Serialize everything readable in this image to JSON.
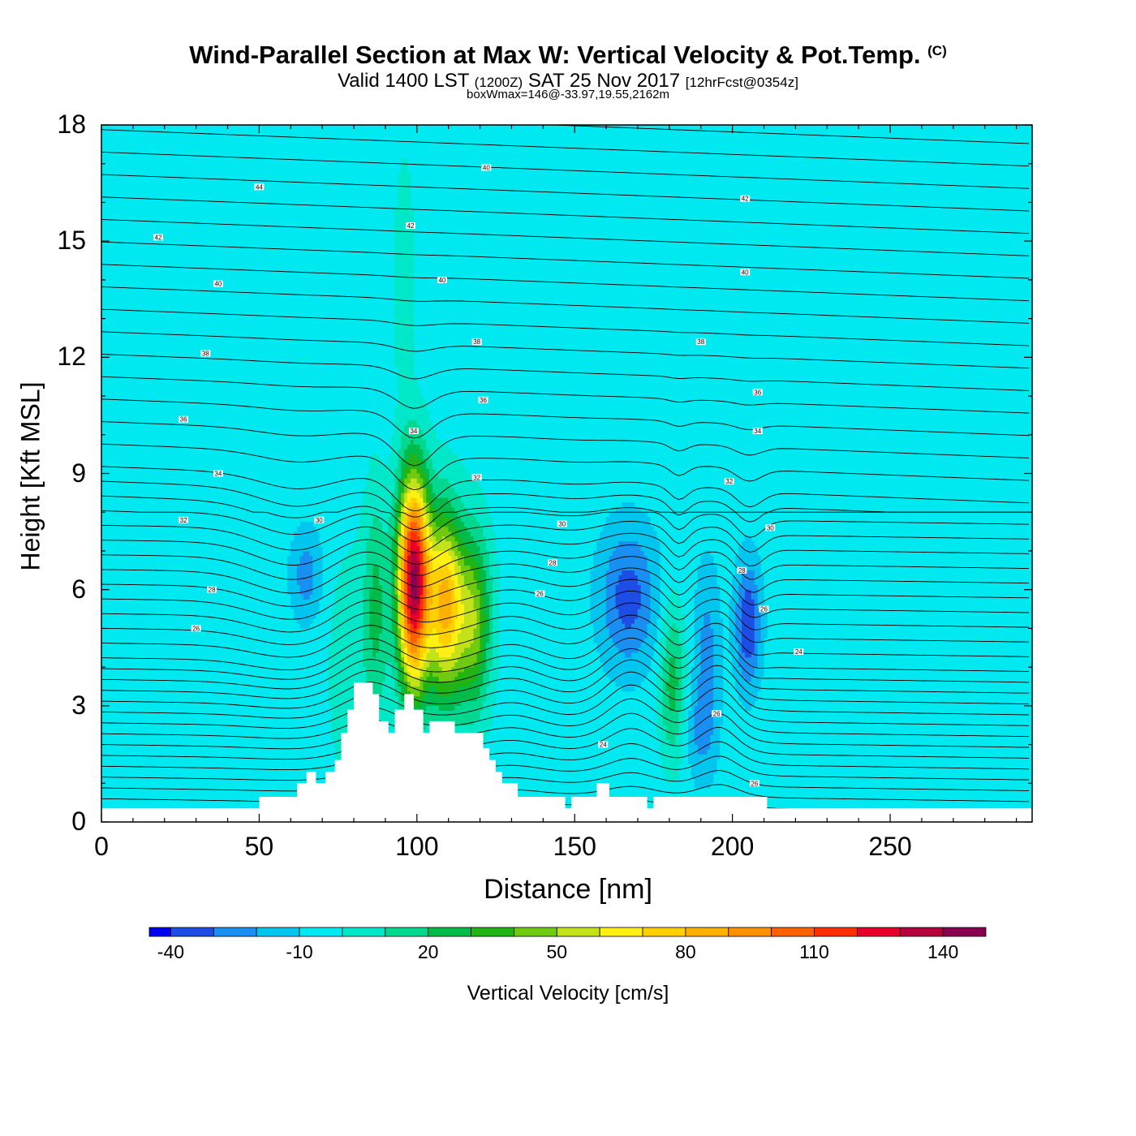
{
  "header": {
    "title": "Wind-Parallel Section at Max W: Vertical Velocity & Pot.Temp.",
    "copyright": "(C)",
    "valid_prefix": "Valid 1400 LST",
    "valid_utc": "(1200Z)",
    "valid_date": "SAT 25 Nov 2017",
    "forecast": "[12hrFcst@0354z]",
    "box_wmax": "boxWmax=146@-33.97,19.55,2162m"
  },
  "chart_data": {
    "type": "heatmap",
    "title": "Wind-Parallel Section at Max W: Vertical Velocity & Pot.Temp.",
    "xlabel": "Distance [nm]",
    "ylabel": "Height [Kft MSL]",
    "xlim": [
      0,
      295
    ],
    "ylim": [
      0,
      18
    ],
    "x_ticks": [
      "0",
      "50",
      "100",
      "150",
      "200",
      "250"
    ],
    "y_ticks": [
      "0",
      "3",
      "6",
      "9",
      "12",
      "15",
      "18"
    ],
    "background_value_cms": -5,
    "vertical_velocity_cells": [
      {
        "x": 99,
        "y": 6.2,
        "wx": 5,
        "wy": 2.7,
        "w": 146
      },
      {
        "x": 109,
        "y": 5.6,
        "wx": 5.5,
        "wy": 2.4,
        "w": 85
      },
      {
        "x": 118,
        "y": 5.2,
        "wx": 5.5,
        "wy": 2.3,
        "w": 52
      },
      {
        "x": 87,
        "y": 5.5,
        "wx": 4,
        "wy": 3,
        "w": 27
      },
      {
        "x": 181,
        "y": 3.6,
        "wx": 4,
        "wy": 2,
        "w": 30
      },
      {
        "x": 78,
        "y": 4,
        "wx": 7,
        "wy": 3.5,
        "w": 10
      },
      {
        "x": 96,
        "y": 14,
        "wx": 3,
        "wy": 3,
        "w": 15
      },
      {
        "x": 167,
        "y": 5.8,
        "wx": 9,
        "wy": 1.8,
        "w": -30
      },
      {
        "x": 205,
        "y": 5.1,
        "wx": 4,
        "wy": 1.6,
        "w": -35
      },
      {
        "x": 65,
        "y": 6.4,
        "wx": 5,
        "wy": 1.2,
        "w": -20
      },
      {
        "x": 192,
        "y": 4.5,
        "wx": 4,
        "wy": 2.2,
        "w": -18
      },
      {
        "x": 190,
        "y": 2.3,
        "wx": 5,
        "wy": 1.3,
        "w": -15
      }
    ],
    "terrain_profile": [
      [
        0,
        0.35
      ],
      [
        50,
        0.35
      ],
      [
        50,
        0.65
      ],
      [
        62,
        0.65
      ],
      [
        62,
        1.0
      ],
      [
        65,
        1.0
      ],
      [
        65,
        1.3
      ],
      [
        68,
        1.3
      ],
      [
        68,
        1.0
      ],
      [
        71,
        1.0
      ],
      [
        71,
        1.3
      ],
      [
        74,
        1.3
      ],
      [
        74,
        1.6
      ],
      [
        76,
        1.6
      ],
      [
        76,
        2.3
      ],
      [
        78,
        2.3
      ],
      [
        78,
        2.9
      ],
      [
        80,
        2.9
      ],
      [
        80,
        3.6
      ],
      [
        86,
        3.6
      ],
      [
        86,
        3.3
      ],
      [
        88,
        3.3
      ],
      [
        88,
        2.6
      ],
      [
        91,
        2.6
      ],
      [
        91,
        2.3
      ],
      [
        93,
        2.3
      ],
      [
        93,
        2.9
      ],
      [
        96,
        2.9
      ],
      [
        96,
        3.3
      ],
      [
        99,
        3.3
      ],
      [
        99,
        2.9
      ],
      [
        102,
        2.9
      ],
      [
        102,
        2.3
      ],
      [
        104,
        2.3
      ],
      [
        104,
        2.6
      ],
      [
        112,
        2.6
      ],
      [
        112,
        2.3
      ],
      [
        121,
        2.3
      ],
      [
        121,
        1.9
      ],
      [
        123,
        1.9
      ],
      [
        123,
        1.6
      ],
      [
        125,
        1.6
      ],
      [
        125,
        1.3
      ],
      [
        127,
        1.3
      ],
      [
        127,
        1.0
      ],
      [
        132,
        1.0
      ],
      [
        132,
        0.65
      ],
      [
        147,
        0.65
      ],
      [
        147,
        0.35
      ],
      [
        149,
        0.35
      ],
      [
        149,
        0.65
      ],
      [
        157,
        0.65
      ],
      [
        157,
        1.0
      ],
      [
        161,
        1.0
      ],
      [
        161,
        0.65
      ],
      [
        173,
        0.65
      ],
      [
        173,
        0.35
      ],
      [
        175,
        0.35
      ],
      [
        175,
        0.65
      ],
      [
        211,
        0.65
      ],
      [
        211,
        0.35
      ],
      [
        295,
        0.35
      ]
    ],
    "theta_contours": {
      "levels_celsius_label": [
        "24",
        "26",
        "28",
        "30",
        "32",
        "34",
        "36",
        "38",
        "40",
        "42",
        "44"
      ],
      "labels": [
        {
          "x": 18,
          "y": 15.1,
          "text": "42"
        },
        {
          "x": 50,
          "y": 16.4,
          "text": "44"
        },
        {
          "x": 122,
          "y": 16.9,
          "text": "40"
        },
        {
          "x": 98,
          "y": 15.4,
          "text": "42"
        },
        {
          "x": 204,
          "y": 16.1,
          "text": "42"
        },
        {
          "x": 37,
          "y": 13.9,
          "text": "40"
        },
        {
          "x": 108,
          "y": 14.0,
          "text": "40"
        },
        {
          "x": 204,
          "y": 14.2,
          "text": "40"
        },
        {
          "x": 33,
          "y": 12.1,
          "text": "38"
        },
        {
          "x": 119,
          "y": 12.4,
          "text": "38"
        },
        {
          "x": 190,
          "y": 12.4,
          "text": "38"
        },
        {
          "x": 26,
          "y": 10.4,
          "text": "36"
        },
        {
          "x": 121,
          "y": 10.9,
          "text": "36"
        },
        {
          "x": 208,
          "y": 11.1,
          "text": "36"
        },
        {
          "x": 99,
          "y": 10.1,
          "text": "34"
        },
        {
          "x": 208,
          "y": 10.1,
          "text": "34"
        },
        {
          "x": 37,
          "y": 9.0,
          "text": "34"
        },
        {
          "x": 119,
          "y": 8.9,
          "text": "32"
        },
        {
          "x": 199,
          "y": 8.8,
          "text": "32"
        },
        {
          "x": 26,
          "y": 7.8,
          "text": "32"
        },
        {
          "x": 69,
          "y": 7.8,
          "text": "30"
        },
        {
          "x": 146,
          "y": 7.7,
          "text": "30"
        },
        {
          "x": 212,
          "y": 7.6,
          "text": "30"
        },
        {
          "x": 143,
          "y": 6.7,
          "text": "28"
        },
        {
          "x": 203,
          "y": 6.5,
          "text": "28"
        },
        {
          "x": 35,
          "y": 6.0,
          "text": "28"
        },
        {
          "x": 139,
          "y": 5.9,
          "text": "26"
        },
        {
          "x": 30,
          "y": 5.0,
          "text": "26"
        },
        {
          "x": 210,
          "y": 5.5,
          "text": "26"
        },
        {
          "x": 221,
          "y": 4.4,
          "text": "24"
        },
        {
          "x": 195,
          "y": 2.8,
          "text": "26"
        },
        {
          "x": 159,
          "y": 2.0,
          "text": "24"
        },
        {
          "x": 207,
          "y": 1.0,
          "text": "26"
        }
      ]
    },
    "colorbar": {
      "label": "Vertical Velocity [cm/s]",
      "boundaries": [
        -45,
        -40,
        -30,
        -20,
        -10,
        0,
        10,
        20,
        30,
        40,
        50,
        60,
        70,
        80,
        90,
        100,
        110,
        120,
        130,
        140,
        150
      ],
      "colors": [
        "#0000ee",
        "#1e4de6",
        "#1a8ff2",
        "#00c6ef",
        "#00e8f0",
        "#00e8c8",
        "#00d890",
        "#00bb4a",
        "#22b414",
        "#6fca10",
        "#c4e21a",
        "#fff014",
        "#ffd000",
        "#ffb000",
        "#ff9000",
        "#ff6000",
        "#ff3000",
        "#e8002d",
        "#b4003c",
        "#8a0050"
      ],
      "tick_labels": [
        "-40",
        "-10",
        "20",
        "50",
        "80",
        "110",
        "140"
      ],
      "tick_values": [
        -40,
        -10,
        20,
        50,
        80,
        110,
        140
      ]
    }
  }
}
